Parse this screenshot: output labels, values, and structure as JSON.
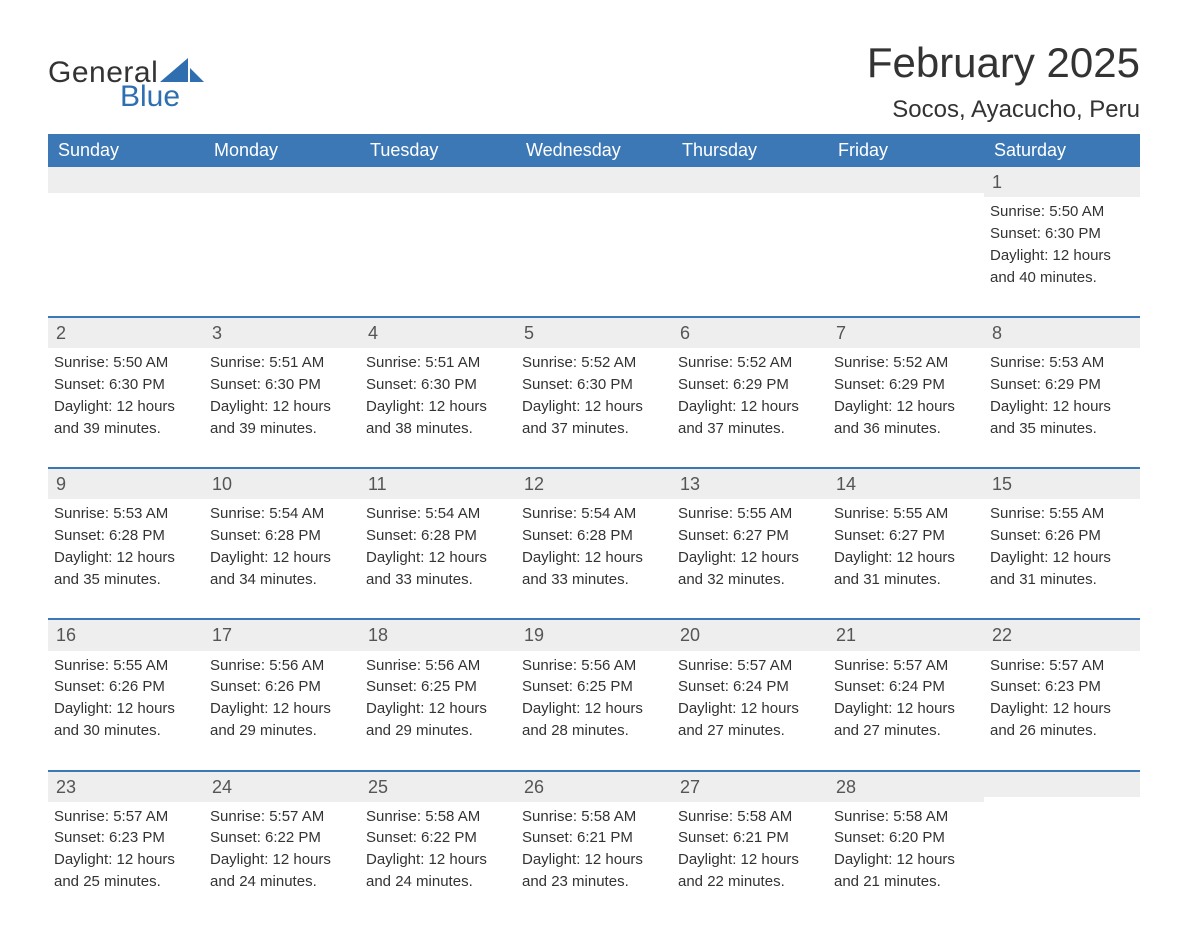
{
  "styling": {
    "accent_color": "#3b78b5",
    "header_bg": "#3b78b5",
    "header_text": "#ffffff",
    "daynum_bg": "#eeeeee",
    "body_text": "#333333",
    "page_bg": "#ffffff",
    "logo_blue": "#2f6fb0",
    "month_title_fontsize": 42,
    "location_fontsize": 24,
    "weekday_fontsize": 18,
    "daynum_fontsize": 18,
    "detail_fontsize": 15,
    "columns": 7
  },
  "logo": {
    "line1": "General",
    "line2": "Blue"
  },
  "title": "February 2025",
  "location": "Socos, Ayacucho, Peru",
  "weekdays": [
    "Sunday",
    "Monday",
    "Tuesday",
    "Wednesday",
    "Thursday",
    "Friday",
    "Saturday"
  ],
  "weeks": [
    [
      {
        "blank": true
      },
      {
        "blank": true
      },
      {
        "blank": true
      },
      {
        "blank": true
      },
      {
        "blank": true
      },
      {
        "blank": true
      },
      {
        "num": "1",
        "sunrise": "Sunrise: 5:50 AM",
        "sunset": "Sunset: 6:30 PM",
        "day1": "Daylight: 12 hours",
        "day2": "and 40 minutes."
      }
    ],
    [
      {
        "num": "2",
        "sunrise": "Sunrise: 5:50 AM",
        "sunset": "Sunset: 6:30 PM",
        "day1": "Daylight: 12 hours",
        "day2": "and 39 minutes."
      },
      {
        "num": "3",
        "sunrise": "Sunrise: 5:51 AM",
        "sunset": "Sunset: 6:30 PM",
        "day1": "Daylight: 12 hours",
        "day2": "and 39 minutes."
      },
      {
        "num": "4",
        "sunrise": "Sunrise: 5:51 AM",
        "sunset": "Sunset: 6:30 PM",
        "day1": "Daylight: 12 hours",
        "day2": "and 38 minutes."
      },
      {
        "num": "5",
        "sunrise": "Sunrise: 5:52 AM",
        "sunset": "Sunset: 6:30 PM",
        "day1": "Daylight: 12 hours",
        "day2": "and 37 minutes."
      },
      {
        "num": "6",
        "sunrise": "Sunrise: 5:52 AM",
        "sunset": "Sunset: 6:29 PM",
        "day1": "Daylight: 12 hours",
        "day2": "and 37 minutes."
      },
      {
        "num": "7",
        "sunrise": "Sunrise: 5:52 AM",
        "sunset": "Sunset: 6:29 PM",
        "day1": "Daylight: 12 hours",
        "day2": "and 36 minutes."
      },
      {
        "num": "8",
        "sunrise": "Sunrise: 5:53 AM",
        "sunset": "Sunset: 6:29 PM",
        "day1": "Daylight: 12 hours",
        "day2": "and 35 minutes."
      }
    ],
    [
      {
        "num": "9",
        "sunrise": "Sunrise: 5:53 AM",
        "sunset": "Sunset: 6:28 PM",
        "day1": "Daylight: 12 hours",
        "day2": "and 35 minutes."
      },
      {
        "num": "10",
        "sunrise": "Sunrise: 5:54 AM",
        "sunset": "Sunset: 6:28 PM",
        "day1": "Daylight: 12 hours",
        "day2": "and 34 minutes."
      },
      {
        "num": "11",
        "sunrise": "Sunrise: 5:54 AM",
        "sunset": "Sunset: 6:28 PM",
        "day1": "Daylight: 12 hours",
        "day2": "and 33 minutes."
      },
      {
        "num": "12",
        "sunrise": "Sunrise: 5:54 AM",
        "sunset": "Sunset: 6:28 PM",
        "day1": "Daylight: 12 hours",
        "day2": "and 33 minutes."
      },
      {
        "num": "13",
        "sunrise": "Sunrise: 5:55 AM",
        "sunset": "Sunset: 6:27 PM",
        "day1": "Daylight: 12 hours",
        "day2": "and 32 minutes."
      },
      {
        "num": "14",
        "sunrise": "Sunrise: 5:55 AM",
        "sunset": "Sunset: 6:27 PM",
        "day1": "Daylight: 12 hours",
        "day2": "and 31 minutes."
      },
      {
        "num": "15",
        "sunrise": "Sunrise: 5:55 AM",
        "sunset": "Sunset: 6:26 PM",
        "day1": "Daylight: 12 hours",
        "day2": "and 31 minutes."
      }
    ],
    [
      {
        "num": "16",
        "sunrise": "Sunrise: 5:55 AM",
        "sunset": "Sunset: 6:26 PM",
        "day1": "Daylight: 12 hours",
        "day2": "and 30 minutes."
      },
      {
        "num": "17",
        "sunrise": "Sunrise: 5:56 AM",
        "sunset": "Sunset: 6:26 PM",
        "day1": "Daylight: 12 hours",
        "day2": "and 29 minutes."
      },
      {
        "num": "18",
        "sunrise": "Sunrise: 5:56 AM",
        "sunset": "Sunset: 6:25 PM",
        "day1": "Daylight: 12 hours",
        "day2": "and 29 minutes."
      },
      {
        "num": "19",
        "sunrise": "Sunrise: 5:56 AM",
        "sunset": "Sunset: 6:25 PM",
        "day1": "Daylight: 12 hours",
        "day2": "and 28 minutes."
      },
      {
        "num": "20",
        "sunrise": "Sunrise: 5:57 AM",
        "sunset": "Sunset: 6:24 PM",
        "day1": "Daylight: 12 hours",
        "day2": "and 27 minutes."
      },
      {
        "num": "21",
        "sunrise": "Sunrise: 5:57 AM",
        "sunset": "Sunset: 6:24 PM",
        "day1": "Daylight: 12 hours",
        "day2": "and 27 minutes."
      },
      {
        "num": "22",
        "sunrise": "Sunrise: 5:57 AM",
        "sunset": "Sunset: 6:23 PM",
        "day1": "Daylight: 12 hours",
        "day2": "and 26 minutes."
      }
    ],
    [
      {
        "num": "23",
        "sunrise": "Sunrise: 5:57 AM",
        "sunset": "Sunset: 6:23 PM",
        "day1": "Daylight: 12 hours",
        "day2": "and 25 minutes."
      },
      {
        "num": "24",
        "sunrise": "Sunrise: 5:57 AM",
        "sunset": "Sunset: 6:22 PM",
        "day1": "Daylight: 12 hours",
        "day2": "and 24 minutes."
      },
      {
        "num": "25",
        "sunrise": "Sunrise: 5:58 AM",
        "sunset": "Sunset: 6:22 PM",
        "day1": "Daylight: 12 hours",
        "day2": "and 24 minutes."
      },
      {
        "num": "26",
        "sunrise": "Sunrise: 5:58 AM",
        "sunset": "Sunset: 6:21 PM",
        "day1": "Daylight: 12 hours",
        "day2": "and 23 minutes."
      },
      {
        "num": "27",
        "sunrise": "Sunrise: 5:58 AM",
        "sunset": "Sunset: 6:21 PM",
        "day1": "Daylight: 12 hours",
        "day2": "and 22 minutes."
      },
      {
        "num": "28",
        "sunrise": "Sunrise: 5:58 AM",
        "sunset": "Sunset: 6:20 PM",
        "day1": "Daylight: 12 hours",
        "day2": "and 21 minutes."
      },
      {
        "blank": true
      }
    ]
  ]
}
